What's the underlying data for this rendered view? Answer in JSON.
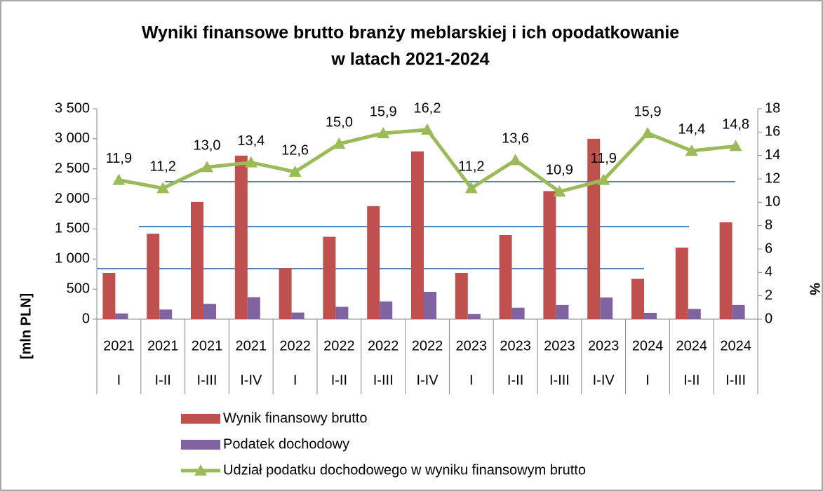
{
  "chart_data": {
    "type": "bar_line",
    "title": [
      "Wyniki finansowe brutto branży meblarskiej i ich opodatkowanie",
      "w latach 2021-2024"
    ],
    "ylabel": "[mln PLN]",
    "y2label": "%",
    "categories": [
      [
        "2021",
        "I"
      ],
      [
        "2021",
        "I-II"
      ],
      [
        "2021",
        "I-III"
      ],
      [
        "2021",
        "I-IV"
      ],
      [
        "2022",
        "I"
      ],
      [
        "2022",
        "I-II"
      ],
      [
        "2022",
        "I-III"
      ],
      [
        "2022",
        "I-IV"
      ],
      [
        "2023",
        "I"
      ],
      [
        "2023",
        "I-II"
      ],
      [
        "2023",
        "I-III"
      ],
      [
        "2023",
        "I-IV"
      ],
      [
        "2024",
        "I"
      ],
      [
        "2024",
        "I-II"
      ],
      [
        "2024",
        "I-III"
      ]
    ],
    "series": [
      {
        "name": "Wynik finansowy brutto",
        "color": "#c0504d",
        "kind": "bar",
        "values": [
          770,
          1420,
          1950,
          2720,
          850,
          1370,
          1880,
          2790,
          770,
          1400,
          2130,
          3000,
          670,
          1190,
          1610
        ]
      },
      {
        "name": "Podatek dochodowy",
        "color": "#8064a2",
        "kind": "bar",
        "values": [
          95,
          160,
          255,
          365,
          110,
          205,
          295,
          455,
          85,
          190,
          235,
          360,
          105,
          170,
          235
        ]
      },
      {
        "name": "Udział podatku dochodowego w wyniku finansowym brutto",
        "color": "#9bbb59",
        "kind": "line",
        "axis": "y2",
        "values": [
          11.9,
          11.2,
          13.0,
          13.4,
          12.6,
          15.0,
          15.9,
          16.2,
          11.2,
          13.6,
          10.9,
          11.9,
          15.9,
          14.4,
          14.8
        ],
        "value_labels": [
          "11,9",
          "11,2",
          "13,0",
          "13,4",
          "12,6",
          "15,0",
          "15,9",
          "16,2",
          "11,2",
          "13,6",
          "10,9",
          "11,9",
          "15,9",
          "14,4",
          "14,8"
        ]
      }
    ],
    "ylim": [
      0,
      3500
    ],
    "yticks": [
      0,
      500,
      {
        "value": 1000,
        "label": "1 000"
      },
      {
        "value": 1500,
        "label": "1 500"
      },
      {
        "value": 2000,
        "label": "2 000"
      },
      {
        "value": 2500,
        "label": "2 500"
      },
      {
        "value": 3000,
        "label": "3 000"
      },
      {
        "value": 3500,
        "label": "3 500"
      }
    ],
    "y2lim": [
      0,
      18
    ],
    "y2ticks": [
      0,
      2,
      4,
      6,
      8,
      10,
      12,
      14,
      16,
      18
    ],
    "legend": "bottom"
  }
}
